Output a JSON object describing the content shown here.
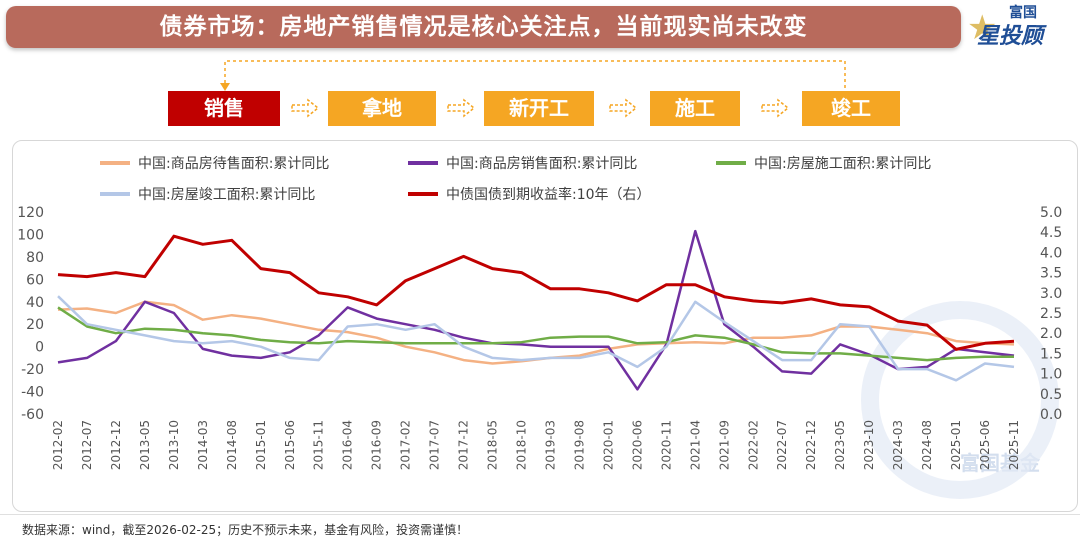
{
  "header": {
    "title": "债券市场：房地产销售情况是核心关注点，当前现实尚未改变",
    "logo_top": "富国",
    "logo_main": "星投顾"
  },
  "flow": {
    "steps": [
      "销售",
      "拿地",
      "新开工",
      "施工",
      "竣工"
    ],
    "colors": [
      "#c00000",
      "#f5a623",
      "#f5a623",
      "#f5a623",
      "#f5a623"
    ]
  },
  "footer": {
    "source": "数据来源：wind，截至2026-02-25；历史不预示未来，基金有风险，投资需谨慎！"
  },
  "watermark": "富国基金",
  "chart_data": {
    "type": "line",
    "x": [
      "2012-02",
      "2012-07",
      "2012-12",
      "2013-05",
      "2013-10",
      "2014-03",
      "2014-08",
      "2015-01",
      "2015-06",
      "2015-11",
      "2016-04",
      "2016-09",
      "2017-02",
      "2017-07",
      "2017-12",
      "2018-05",
      "2018-10",
      "2019-03",
      "2019-08",
      "2020-01",
      "2020-06",
      "2020-11",
      "2021-04",
      "2021-09",
      "2022-02",
      "2022-07",
      "2022-12",
      "2023-05",
      "2023-10",
      "2024-03",
      "2024-08",
      "2025-01",
      "2025-06",
      "2025-11"
    ],
    "ylim_left": [
      -60,
      120
    ],
    "yticks_left": [
      -60,
      -40,
      -20,
      0,
      20,
      40,
      60,
      80,
      100,
      120
    ],
    "ylim_right": [
      0.0,
      5.0
    ],
    "yticks_right": [
      "0.0",
      "0.5",
      "1.0",
      "1.5",
      "2.0",
      "2.5",
      "3.0",
      "3.5",
      "4.0",
      "4.5",
      "5.0"
    ],
    "series": [
      {
        "name": "中国:商品房待售面积:累计同比",
        "axis": "left",
        "color": "#f4b183",
        "values": [
          33,
          34,
          30,
          40,
          37,
          24,
          28,
          25,
          20,
          15,
          13,
          8,
          0,
          -5,
          -12,
          -15,
          -13,
          -10,
          -8,
          -2,
          2,
          3,
          4,
          3,
          8,
          8,
          10,
          18,
          18,
          15,
          12,
          5,
          3,
          2
        ]
      },
      {
        "name": "中国:商品房销售面积:累计同比",
        "axis": "left",
        "color": "#7030a0",
        "values": [
          -14,
          -10,
          5,
          40,
          30,
          -2,
          -8,
          -10,
          -5,
          10,
          35,
          25,
          20,
          15,
          8,
          3,
          2,
          0,
          0,
          0,
          -38,
          2,
          103,
          20,
          0,
          -22,
          -24,
          2,
          -7,
          -20,
          -18,
          -2,
          -5,
          -8
        ]
      },
      {
        "name": "中国:房屋施工面积:累计同比",
        "axis": "left",
        "color": "#70ad47",
        "values": [
          35,
          18,
          12,
          16,
          15,
          12,
          10,
          6,
          4,
          3,
          5,
          4,
          3,
          3,
          3,
          3,
          4,
          8,
          9,
          9,
          3,
          4,
          10,
          8,
          2,
          -5,
          -6,
          -6,
          -8,
          -10,
          -12,
          -10,
          -9,
          -9
        ]
      },
      {
        "name": "中国:房屋竣工面积:累计同比",
        "axis": "left",
        "color": "#b4c7e7",
        "values": [
          45,
          20,
          15,
          10,
          5,
          3,
          5,
          0,
          -10,
          -12,
          18,
          20,
          15,
          20,
          0,
          -10,
          -12,
          -10,
          -10,
          -5,
          -18,
          0,
          40,
          22,
          5,
          -12,
          -12,
          20,
          18,
          -20,
          -20,
          -30,
          -15,
          -18
        ]
      },
      {
        "name": "中债国债到期收益率:10年（右）",
        "axis": "right",
        "color": "#c00000",
        "values": [
          3.45,
          3.4,
          3.5,
          3.4,
          4.4,
          4.2,
          4.3,
          3.6,
          3.5,
          3.0,
          2.9,
          2.7,
          3.3,
          3.6,
          3.9,
          3.6,
          3.5,
          3.1,
          3.1,
          3.0,
          2.8,
          3.2,
          3.2,
          2.9,
          2.8,
          2.75,
          2.85,
          2.7,
          2.65,
          2.3,
          2.2,
          1.6,
          1.75,
          1.8
        ]
      }
    ]
  }
}
